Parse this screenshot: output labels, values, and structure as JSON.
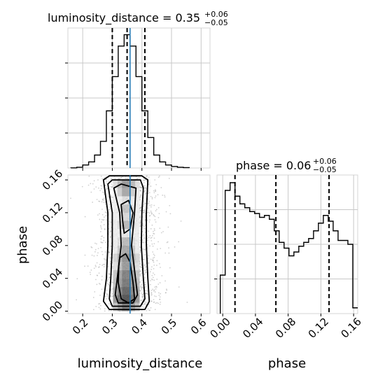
{
  "chart_data": [
    {
      "type": "histogram",
      "panel": "luminosity_distance marginal",
      "title": {
        "main": "luminosity_distance = 0.35",
        "plus": "+0.06",
        "minus": "−0.05"
      },
      "x": [
        0.17,
        0.19,
        0.21,
        0.23,
        0.25,
        0.27,
        0.29,
        0.31,
        0.33,
        0.35,
        0.37,
        0.39,
        0.41,
        0.43,
        0.45,
        0.47,
        0.49,
        0.51,
        0.53,
        0.55
      ],
      "values": [
        0.2,
        1,
        4,
        8,
        17,
        35,
        75,
        120,
        160,
        175,
        160,
        120,
        75,
        40,
        17,
        8,
        4,
        2,
        1,
        0.5
      ],
      "quantiles": [
        0.3,
        0.35,
        0.41
      ],
      "truth": 0.36,
      "xlim": [
        0.15,
        0.63
      ],
      "xticks": [
        0.2,
        0.3,
        0.4,
        0.5,
        0.6
      ],
      "grid": true,
      "line_color": "#000000",
      "truth_color": "#1f77b4"
    },
    {
      "type": "heatmap",
      "panel": "joint luminosity_distance vs phase",
      "xlabel": "luminosity_distance",
      "ylabel": "phase",
      "xlim": [
        0.15,
        0.63
      ],
      "ylim": [
        -0.003,
        0.166
      ],
      "xticks": [
        "0.2",
        "0.3",
        "0.4",
        "0.5",
        "0.6"
      ],
      "yticks": [
        "0.00",
        "0.04",
        "0.08",
        "0.12",
        "0.16"
      ],
      "truth": {
        "x": 0.36
      },
      "contour_levels": 4,
      "density_colormap": "greys"
    },
    {
      "type": "histogram",
      "panel": "phase marginal",
      "title": {
        "main": "phase = 0.06",
        "plus": "+0.06",
        "minus": "−0.05"
      },
      "x": [
        0.0,
        0.006,
        0.012,
        0.018,
        0.024,
        0.03,
        0.036,
        0.042,
        0.048,
        0.054,
        0.06,
        0.066,
        0.072,
        0.078,
        0.084,
        0.09,
        0.096,
        0.102,
        0.108,
        0.114,
        0.12,
        0.126,
        0.132,
        0.138,
        0.144,
        0.15,
        0.156,
        0.162
      ],
      "values": [
        0.2,
        0.64,
        0.68,
        0.61,
        0.57,
        0.55,
        0.53,
        0.52,
        0.5,
        0.51,
        0.49,
        0.43,
        0.37,
        0.34,
        0.3,
        0.32,
        0.35,
        0.37,
        0.39,
        0.43,
        0.47,
        0.51,
        0.48,
        0.43,
        0.38,
        0.38,
        0.36,
        0.03
      ],
      "quantiles": [
        0.015,
        0.065,
        0.13
      ],
      "xlim": [
        -0.007,
        0.165
      ],
      "xticks": [
        "0.00",
        "0.04",
        "0.08",
        "0.12",
        "0.16"
      ],
      "xlabel": "phase",
      "grid": true,
      "line_color": "#000000"
    }
  ]
}
